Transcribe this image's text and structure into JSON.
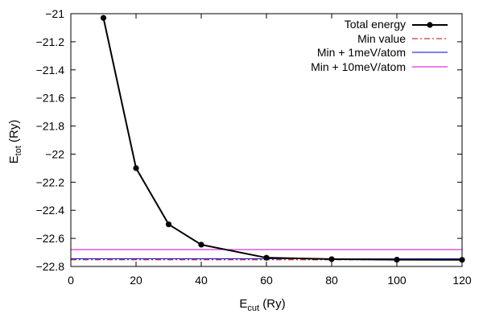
{
  "chart_data": {
    "type": "line",
    "xlabel": {
      "main": "E",
      "sub": "cut",
      "unit": " (Ry)"
    },
    "ylabel": {
      "main": "E",
      "sub": "tot",
      "unit": " (Ry)"
    },
    "xlim": [
      0,
      120
    ],
    "ylim": [
      -22.8,
      -21.0
    ],
    "xticks": [
      0,
      20,
      40,
      60,
      80,
      100,
      120
    ],
    "yticks": [
      -21,
      -21.2,
      -21.4,
      -21.6,
      -21.8,
      -22,
      -22.2,
      -22.4,
      -22.6,
      -22.8
    ],
    "grid": false,
    "legend_position": "top-right",
    "series": [
      {
        "name": "Total energy",
        "color": "#000000",
        "style": "line-points",
        "x": [
          10,
          20,
          30,
          40,
          60,
          80,
          100,
          120
        ],
        "y": [
          -21.03,
          -22.1,
          -22.5,
          -22.645,
          -22.738,
          -22.748,
          -22.752,
          -22.753
        ]
      },
      {
        "name": "Min value",
        "color": "#cc0000",
        "style": "dash-dot",
        "hline": -22.753
      },
      {
        "name": "Min + 1meV/atom",
        "color": "#0000cc",
        "style": "solid",
        "hline": -22.7457
      },
      {
        "name": "Min + 10meV/atom",
        "color": "#cc00cc",
        "style": "solid",
        "hline": -22.6795
      }
    ]
  }
}
